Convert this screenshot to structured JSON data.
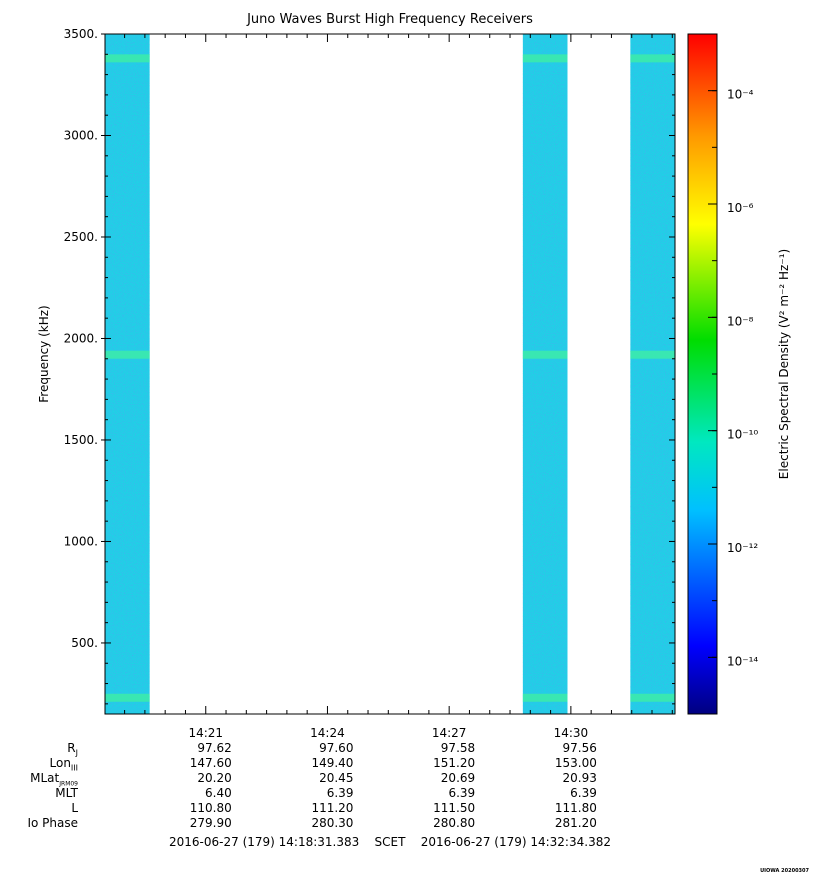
{
  "title": "Juno Waves Burst High Frequency Receivers",
  "chart_data": {
    "type": "heatmap",
    "title": "Juno Waves Burst High Frequency Receivers",
    "ylabel": "Frequency (kHz)",
    "ylim": [
      150,
      3500
    ],
    "yticks": [
      "500.",
      "1000.",
      "1500.",
      "2000.",
      "2500.",
      "3000.",
      "3500."
    ],
    "ytick_values": [
      500,
      1000,
      1500,
      2000,
      2500,
      3000,
      3500
    ],
    "xticks": [
      "14:21",
      "14:24",
      "14:27",
      "14:30"
    ],
    "xlim": [
      "14:18:31",
      "14:32:34"
    ],
    "data_segments": [
      {
        "start": "14:18:31",
        "end": "14:19:37"
      },
      {
        "start": "14:28:49",
        "end": "14:29:55"
      },
      {
        "start": "14:31:28",
        "end": "14:32:34"
      }
    ],
    "persistent_bands_khz": [
      230,
      1920,
      3380
    ],
    "background_level": "1e-12",
    "colorbar": {
      "label": "Electric Spectral Density (V² m⁻² Hz⁻¹)",
      "scale": "log",
      "range": [
        1e-15,
        0.001
      ],
      "tick_labels": [
        "10⁻¹⁴",
        "10⁻¹²",
        "10⁻¹⁰",
        "10⁻⁸",
        "10⁻⁶",
        "10⁻⁴"
      ],
      "tick_exponents": [
        -14,
        -12,
        -10,
        -8,
        -6,
        -4
      ]
    }
  },
  "ephemeris": {
    "labels": {
      "rj": "RJ",
      "lon": "LonIII",
      "mlat": "MLatJRM09",
      "mlt": "MLT",
      "l": "L",
      "io": "Io Phase"
    },
    "columns": [
      {
        "time": "14:21",
        "rj": "97.62",
        "lon": "147.60",
        "mlat": "20.20",
        "mlt": "6.40",
        "l": "110.80",
        "io": "279.90"
      },
      {
        "time": "14:24",
        "rj": "97.60",
        "lon": "149.40",
        "mlat": "20.45",
        "mlt": "6.39",
        "l": "111.20",
        "io": "280.30"
      },
      {
        "time": "14:27",
        "rj": "97.58",
        "lon": "151.20",
        "mlat": "20.69",
        "mlt": "6.39",
        "l": "111.50",
        "io": "280.80"
      },
      {
        "time": "14:30",
        "rj": "97.56",
        "lon": "153.00",
        "mlat": "20.93",
        "mlt": "6.39",
        "l": "111.80",
        "io": "281.20"
      }
    ]
  },
  "scet": {
    "start": "2016-06-27 (179) 14:18:31.383",
    "label": "SCET",
    "end": "2016-06-27 (179) 14:32:34.382"
  },
  "stamp": "UIOWA 20200307"
}
